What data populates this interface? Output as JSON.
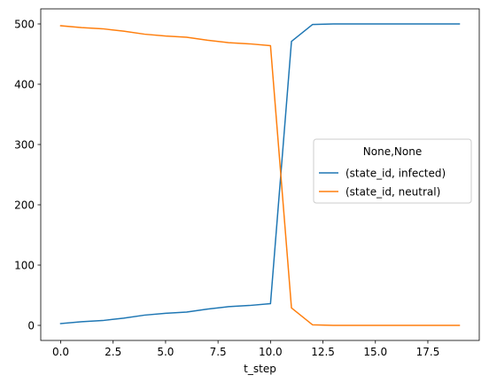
{
  "chart_data": {
    "type": "line",
    "xlabel": "t_step",
    "ylabel": "",
    "xlim": [
      -0.95,
      19.95
    ],
    "ylim": [
      -25,
      525
    ],
    "xticks": [
      0.0,
      2.5,
      5.0,
      7.5,
      10.0,
      12.5,
      15.0,
      17.5
    ],
    "xtick_labels": [
      "0.0",
      "2.5",
      "5.0",
      "7.5",
      "10.0",
      "12.5",
      "15.0",
      "17.5"
    ],
    "yticks": [
      0,
      100,
      200,
      300,
      400,
      500
    ],
    "ytick_labels": [
      "0",
      "100",
      "200",
      "300",
      "400",
      "500"
    ],
    "grid": false,
    "legend": {
      "title": "None,None",
      "placement": "center-right"
    },
    "x": [
      0,
      1,
      2,
      3,
      4,
      5,
      6,
      7,
      8,
      9,
      10,
      11,
      12,
      13,
      14,
      15,
      16,
      17,
      18,
      19
    ],
    "series": [
      {
        "name": "(state_id, infected)",
        "color": "#1f77b4",
        "values": [
          3,
          6,
          8,
          12,
          17,
          20,
          22,
          27,
          31,
          33,
          36,
          471,
          499,
          500,
          500,
          500,
          500,
          500,
          500,
          500
        ]
      },
      {
        "name": "(state_id, neutral)",
        "color": "#ff7f0e",
        "values": [
          497,
          494,
          492,
          488,
          483,
          480,
          478,
          473,
          469,
          467,
          464,
          29,
          1,
          0,
          0,
          0,
          0,
          0,
          0,
          0
        ]
      }
    ]
  }
}
